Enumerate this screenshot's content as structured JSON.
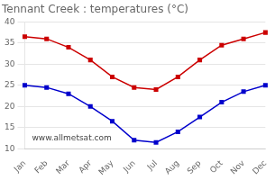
{
  "chart_data": {
    "type": "line",
    "title": "Tennant Creek : temperatures (°C)",
    "categories": [
      "Jan",
      "Feb",
      "Mar",
      "Apr",
      "May",
      "Jun",
      "Jul",
      "Aug",
      "Sep",
      "Oct",
      "Nov",
      "Dec"
    ],
    "series": [
      {
        "color": "#cc0000",
        "marker": "square",
        "values": [
          36.5,
          36.0,
          34.0,
          31.0,
          27.0,
          24.5,
          24.0,
          27.0,
          31.0,
          34.5,
          36.0,
          37.5
        ]
      },
      {
        "color": "#0000cc",
        "marker": "square",
        "values": [
          25.0,
          24.5,
          23.0,
          20.0,
          16.5,
          12.0,
          11.5,
          14.0,
          17.5,
          21.0,
          23.5,
          25.0
        ]
      }
    ],
    "ylim": [
      10,
      40
    ],
    "yticks": [
      10,
      15,
      20,
      25,
      30,
      35,
      40
    ],
    "grid": true,
    "annotations": [
      "www.allmetsat.com"
    ]
  }
}
